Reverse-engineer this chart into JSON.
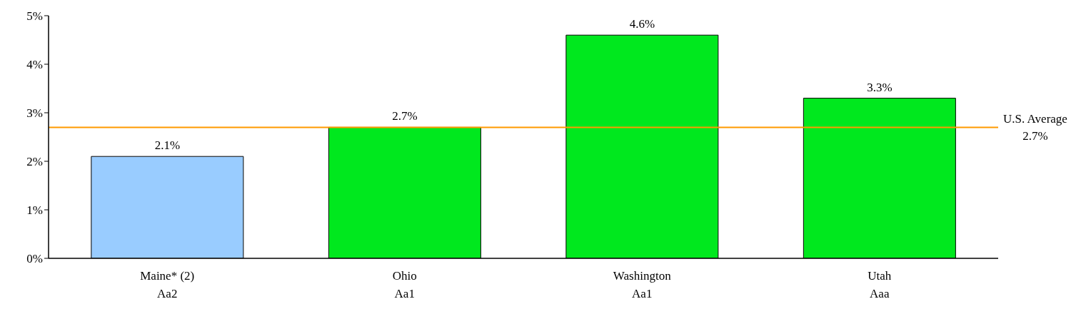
{
  "chart_data": {
    "type": "bar",
    "categories": [
      "Maine* (2)\nAa2",
      "Ohio\nAa1",
      "Washington\nAa1",
      "Utah\nAaa"
    ],
    "values": [
      2.1,
      2.7,
      4.6,
      3.3
    ],
    "colors": [
      "#99ccff",
      "#00e81e",
      "#00e81e",
      "#00e81e"
    ],
    "value_labels": [
      "2.1%",
      "2.7%",
      "4.6%",
      "3.3%"
    ],
    "ylim": [
      0,
      5
    ],
    "yticks": [
      {
        "value": 0,
        "label": "0%"
      },
      {
        "value": 1,
        "label": "1%"
      },
      {
        "value": 2,
        "label": "2%"
      },
      {
        "value": 3,
        "label": "3%"
      },
      {
        "value": 4,
        "label": "4%"
      },
      {
        "value": 5,
        "label": "5%"
      }
    ],
    "ref_lines": [
      {
        "axis": "y",
        "value": 2.7,
        "label": "U.S. Average\n2.7%",
        "color": "#ff9900"
      }
    ],
    "grid": false
  }
}
